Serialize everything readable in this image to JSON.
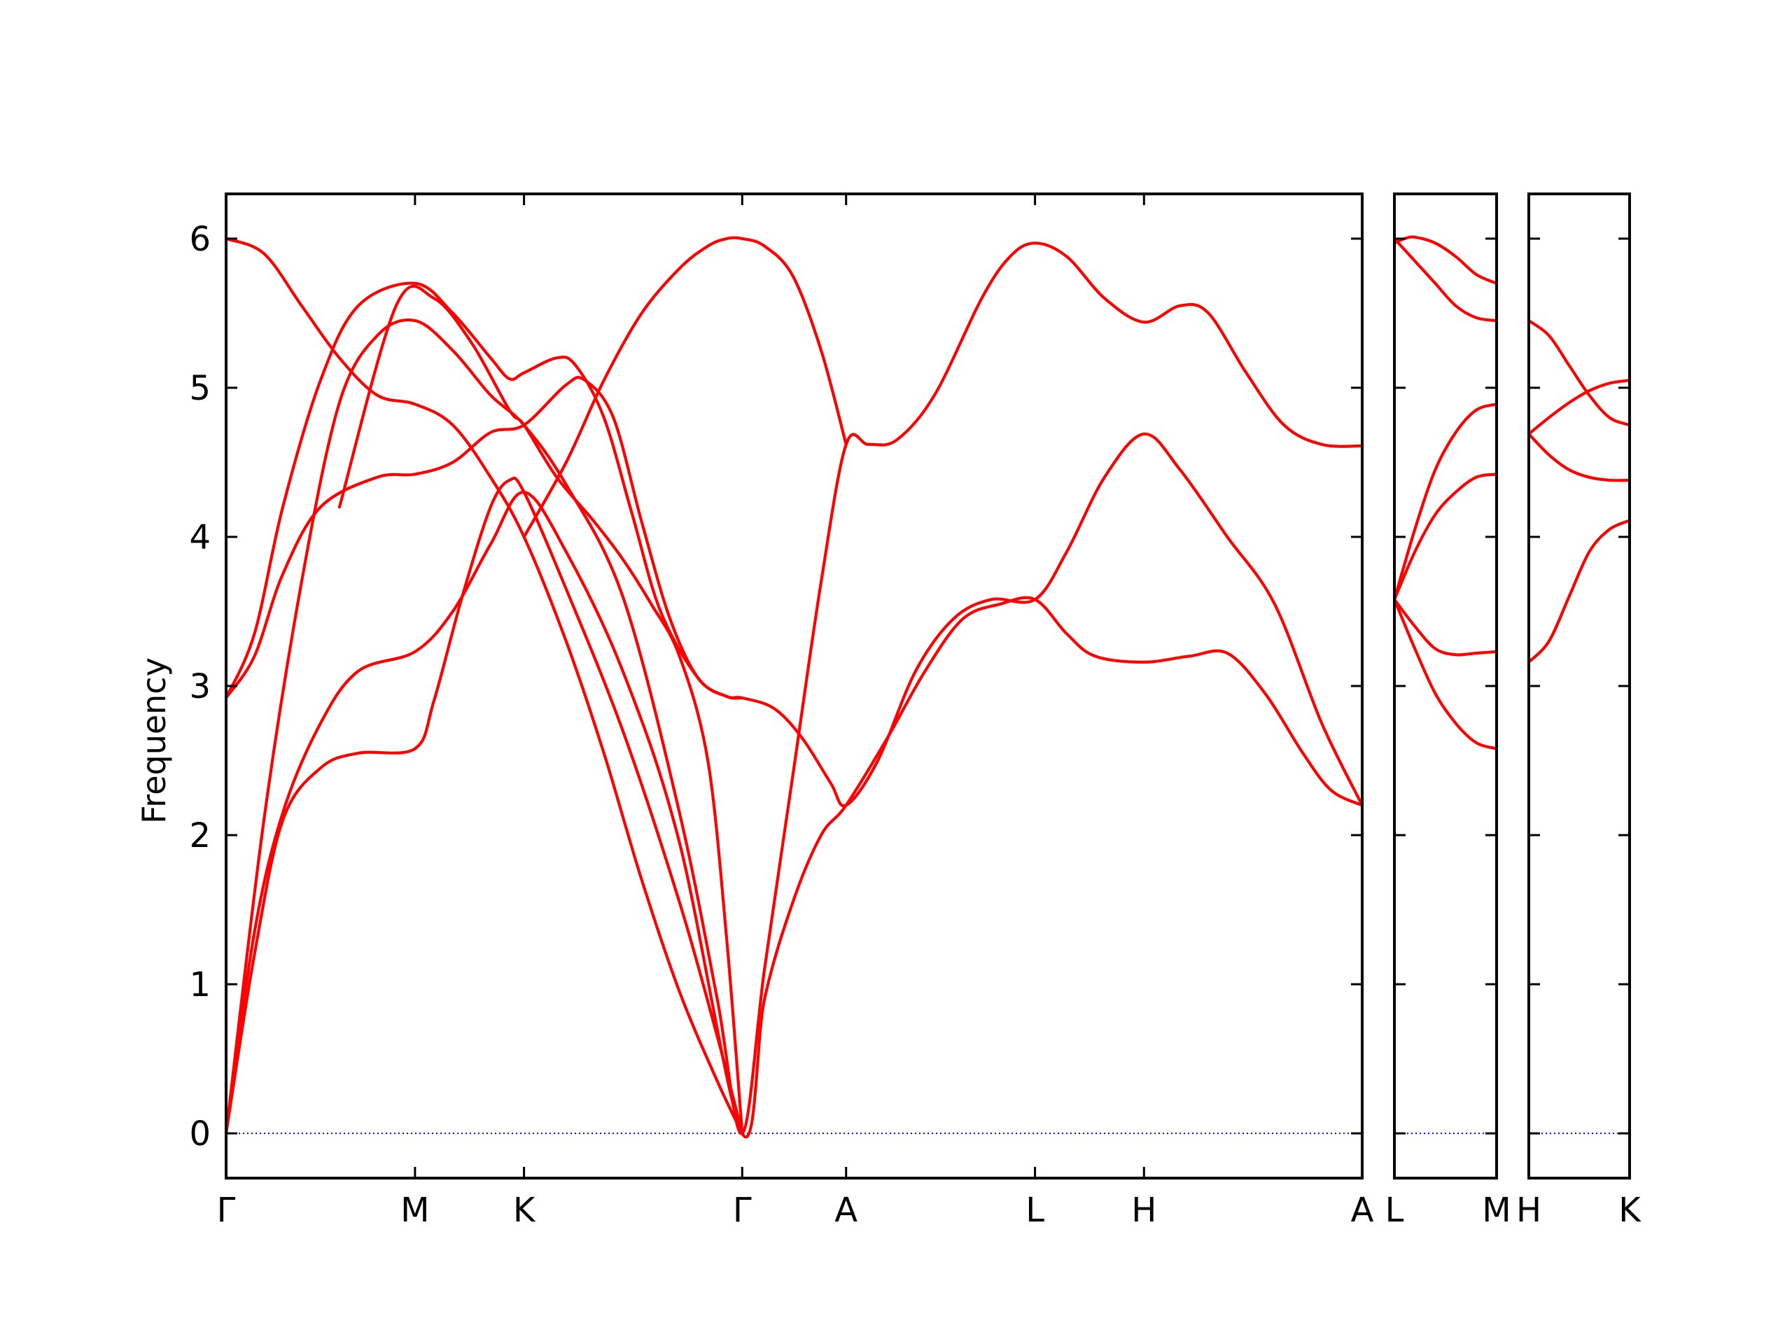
{
  "chart_data": {
    "type": "line",
    "title": "",
    "xlabel": "",
    "ylabel": "Frequency",
    "ylim": [
      -0.3,
      6.3
    ],
    "yticks": [
      0,
      1,
      2,
      3,
      4,
      5,
      6
    ],
    "grid": false,
    "legend": "none",
    "band_color": "#ff0000",
    "zero_line_color": "#0000ff",
    "segments": [
      {
        "id": "seg1",
        "kpoints": [
          "Γ",
          "M",
          "K",
          "Γ",
          "A",
          "L",
          "H",
          "A"
        ],
        "kpos": [
          0,
          1,
          1.577,
          2.732,
          3.282,
          4.282,
          4.859,
          6.014
        ],
        "bands": [
          [
            [
              0,
              0
            ],
            [
              0.15,
              1.2
            ],
            [
              0.3,
              2.1
            ],
            [
              0.5,
              2.45
            ],
            [
              0.7,
              2.55
            ],
            [
              1,
              2.58
            ],
            [
              1.1,
              2.9
            ],
            [
              1.25,
              3.6
            ],
            [
              1.4,
              4.2
            ],
            [
              1.5,
              4.38
            ],
            [
              1.577,
              4.3
            ],
            [
              1.8,
              3.65
            ],
            [
              2.1,
              2.7
            ],
            [
              2.4,
              1.55
            ],
            [
              2.6,
              0.65
            ],
            [
              2.732,
              0
            ]
          ],
          [
            [
              0,
              0
            ],
            [
              0.15,
              1.35
            ],
            [
              0.3,
              2.15
            ],
            [
              0.5,
              2.75
            ],
            [
              0.7,
              3.1
            ],
            [
              1,
              3.23
            ],
            [
              1.2,
              3.5
            ],
            [
              1.4,
              3.95
            ],
            [
              1.577,
              4.3
            ],
            [
              1.8,
              3.9
            ],
            [
              2.1,
              3.1
            ],
            [
              2.4,
              1.95
            ],
            [
              2.732,
              0
            ],
            [
              2.85,
              0.9
            ],
            [
              3.0,
              1.55
            ],
            [
              3.15,
              2.0
            ],
            [
              3.282,
              2.2
            ],
            [
              3.5,
              2.65
            ],
            [
              3.7,
              3.1
            ],
            [
              3.9,
              3.45
            ],
            [
              4.1,
              3.55
            ],
            [
              4.282,
              3.58
            ],
            [
              4.45,
              3.35
            ],
            [
              4.6,
              3.2
            ],
            [
              4.859,
              3.16
            ],
            [
              5.1,
              3.2
            ],
            [
              5.3,
              3.22
            ],
            [
              5.5,
              2.95
            ],
            [
              5.7,
              2.55
            ],
            [
              5.85,
              2.3
            ],
            [
              6.014,
              2.2
            ]
          ],
          [
            [
              0,
              0
            ],
            [
              0.2,
              2.1
            ],
            [
              0.4,
              3.7
            ],
            [
              0.6,
              4.9
            ],
            [
              0.8,
              5.35
            ],
            [
              1,
              5.45
            ],
            [
              1.2,
              5.25
            ],
            [
              1.4,
              4.95
            ],
            [
              1.577,
              4.75
            ],
            [
              1.8,
              4.35
            ],
            [
              2.1,
              3.6
            ],
            [
              2.4,
              2.15
            ],
            [
              2.6,
              0.9
            ],
            [
              2.732,
              0
            ],
            [
              2.85,
              1.1
            ],
            [
              3.0,
              2.4
            ],
            [
              3.15,
              3.7
            ],
            [
              3.282,
              4.62
            ],
            [
              3.4,
              4.62
            ],
            [
              3.55,
              4.65
            ],
            [
              3.75,
              4.95
            ],
            [
              4.0,
              5.6
            ],
            [
              4.15,
              5.88
            ],
            [
              4.282,
              5.97
            ],
            [
              4.45,
              5.88
            ],
            [
              4.65,
              5.6
            ],
            [
              4.859,
              5.44
            ],
            [
              5.05,
              5.55
            ],
            [
              5.2,
              5.5
            ],
            [
              5.4,
              5.1
            ],
            [
              5.6,
              4.75
            ],
            [
              5.8,
              4.62
            ],
            [
              6.014,
              4.61
            ]
          ],
          [
            [
              0,
              2.92
            ],
            [
              0.15,
              3.2
            ],
            [
              0.3,
              3.75
            ],
            [
              0.5,
              4.2
            ],
            [
              0.8,
              4.4
            ],
            [
              1,
              4.42
            ],
            [
              1.2,
              4.5
            ],
            [
              1.4,
              4.7
            ],
            [
              1.577,
              4.75
            ],
            [
              1.8,
              5.02
            ],
            [
              1.9,
              5.05
            ],
            [
              2.05,
              4.8
            ],
            [
              2.2,
              4.1
            ],
            [
              2.35,
              3.45
            ],
            [
              2.5,
              3.05
            ],
            [
              2.65,
              2.93
            ],
            [
              2.732,
              2.92
            ],
            [
              2.9,
              2.85
            ],
            [
              3.05,
              2.65
            ],
            [
              3.2,
              2.35
            ],
            [
              3.282,
              2.2
            ],
            [
              3.45,
              2.5
            ],
            [
              3.65,
              3.1
            ],
            [
              3.85,
              3.45
            ],
            [
              4.05,
              3.58
            ],
            [
              4.282,
              3.58
            ],
            [
              4.45,
              3.9
            ],
            [
              4.65,
              4.4
            ],
            [
              4.859,
              4.69
            ],
            [
              5.05,
              4.45
            ],
            [
              5.3,
              4.0
            ],
            [
              5.55,
              3.55
            ],
            [
              5.8,
              2.75
            ],
            [
              6.014,
              2.2
            ]
          ],
          [
            [
              0,
              2.92
            ],
            [
              0.15,
              3.35
            ],
            [
              0.3,
              4.2
            ],
            [
              0.5,
              5.05
            ],
            [
              0.7,
              5.55
            ],
            [
              1,
              5.7
            ],
            [
              1.2,
              5.5
            ],
            [
              1.4,
              5.2
            ],
            [
              1.5,
              5.06
            ],
            [
              1.577,
              5.1
            ],
            [
              1.75,
              5.2
            ],
            [
              1.85,
              5.15
            ],
            [
              2.0,
              4.8
            ],
            [
              2.15,
              4.15
            ],
            [
              2.3,
              3.5
            ],
            [
              2.5,
              3.05
            ],
            [
              2.65,
              2.93
            ],
            [
              2.732,
              2.92
            ]
          ],
          [
            [
              0,
              6.0
            ],
            [
              0.2,
              5.9
            ],
            [
              0.4,
              5.55
            ],
            [
              0.6,
              5.2
            ],
            [
              0.8,
              4.95
            ],
            [
              1,
              4.89
            ],
            [
              1.2,
              4.75
            ],
            [
              1.4,
              4.4
            ],
            [
              1.577,
              4.0
            ],
            [
              1.8,
              3.3
            ],
            [
              2.0,
              2.55
            ],
            [
              2.2,
              1.7
            ],
            [
              2.4,
              0.95
            ],
            [
              2.6,
              0.35
            ],
            [
              2.732,
              0
            ]
          ],
          [
            [
              0.6,
              4.2
            ],
            [
              0.9,
              5.55
            ],
            [
              1.1,
              5.6
            ],
            [
              1.3,
              5.3
            ],
            [
              1.5,
              4.85
            ],
            [
              1.577,
              4.75
            ],
            [
              1.75,
              4.4
            ],
            [
              1.95,
              4.1
            ],
            [
              2.1,
              3.85
            ],
            [
              2.25,
              3.55
            ],
            [
              2.4,
              3.2
            ],
            [
              2.55,
              2.5
            ],
            [
              2.65,
              1.3
            ],
            [
              2.732,
              0
            ]
          ],
          [
            [
              1.577,
              4.0
            ],
            [
              1.8,
              4.5
            ],
            [
              2.0,
              5.05
            ],
            [
              2.2,
              5.5
            ],
            [
              2.4,
              5.8
            ],
            [
              2.55,
              5.95
            ],
            [
              2.65,
              6.0
            ],
            [
              2.732,
              6.0
            ],
            [
              2.85,
              5.95
            ],
            [
              3.0,
              5.75
            ],
            [
              3.15,
              5.25
            ],
            [
              3.282,
              4.62
            ]
          ]
        ]
      },
      {
        "id": "seg2",
        "kpoints": [
          "L",
          "M"
        ],
        "kpos": [
          0,
          1
        ],
        "bands": [
          [
            [
              0,
              3.58
            ],
            [
              0.2,
              3.25
            ],
            [
              0.4,
              2.95
            ],
            [
              0.6,
              2.75
            ],
            [
              0.8,
              2.62
            ],
            [
              1,
              2.58
            ]
          ],
          [
            [
              0,
              3.58
            ],
            [
              0.2,
              3.4
            ],
            [
              0.4,
              3.25
            ],
            [
              0.6,
              3.21
            ],
            [
              0.8,
              3.22
            ],
            [
              1,
              3.23
            ]
          ],
          [
            [
              0,
              3.58
            ],
            [
              0.2,
              3.9
            ],
            [
              0.4,
              4.15
            ],
            [
              0.6,
              4.3
            ],
            [
              0.8,
              4.4
            ],
            [
              1,
              4.42
            ]
          ],
          [
            [
              0,
              3.58
            ],
            [
              0.2,
              4.05
            ],
            [
              0.4,
              4.45
            ],
            [
              0.6,
              4.7
            ],
            [
              0.8,
              4.85
            ],
            [
              1,
              4.89
            ]
          ],
          [
            [
              0,
              6.0
            ],
            [
              0.2,
              5.85
            ],
            [
              0.4,
              5.7
            ],
            [
              0.6,
              5.55
            ],
            [
              0.8,
              5.47
            ],
            [
              1,
              5.45
            ]
          ],
          [
            [
              0,
              5.97
            ],
            [
              0.1,
              6.0
            ],
            [
              0.2,
              6.01
            ],
            [
              0.4,
              5.97
            ],
            [
              0.6,
              5.88
            ],
            [
              0.8,
              5.76
            ],
            [
              1,
              5.7
            ]
          ]
        ]
      },
      {
        "id": "seg3",
        "kpoints": [
          "H",
          "K"
        ],
        "kpos": [
          0,
          1
        ],
        "bands": [
          [
            [
              0,
              3.16
            ],
            [
              0.2,
              3.3
            ],
            [
              0.4,
              3.6
            ],
            [
              0.6,
              3.9
            ],
            [
              0.8,
              4.05
            ],
            [
              1,
              4.11
            ]
          ],
          [
            [
              0,
              4.69
            ],
            [
              0.2,
              4.55
            ],
            [
              0.4,
              4.45
            ],
            [
              0.6,
              4.4
            ],
            [
              0.8,
              4.38
            ],
            [
              1,
              4.38
            ]
          ],
          [
            [
              0,
              4.69
            ],
            [
              0.2,
              4.8
            ],
            [
              0.4,
              4.9
            ],
            [
              0.6,
              4.98
            ],
            [
              0.8,
              5.03
            ],
            [
              1,
              5.05
            ]
          ],
          [
            [
              0,
              5.45
            ],
            [
              0.2,
              5.35
            ],
            [
              0.4,
              5.15
            ],
            [
              0.6,
              4.95
            ],
            [
              0.8,
              4.8
            ],
            [
              1,
              4.75
            ]
          ]
        ]
      }
    ]
  }
}
